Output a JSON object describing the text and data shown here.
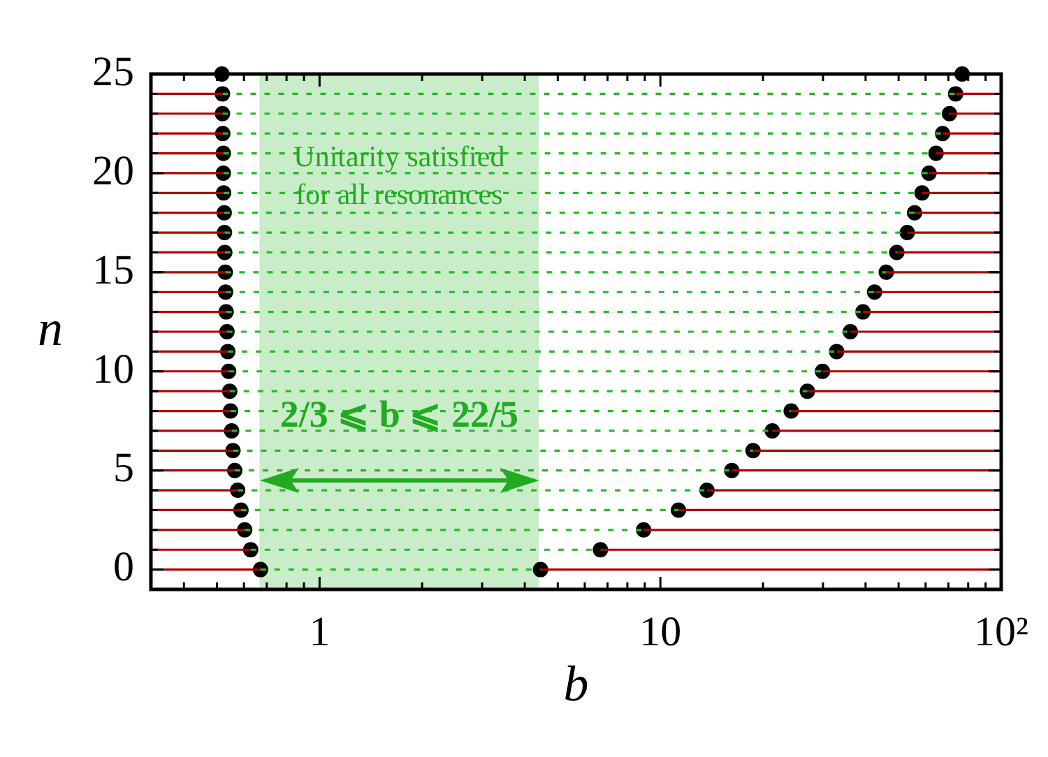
{
  "chart_data": {
    "type": "scatter",
    "xlabel": "b",
    "ylabel": "n",
    "log": "x",
    "grid": false,
    "xlim": [
      0.32,
      100
    ],
    "ylim": [
      -1,
      25
    ],
    "xticks": [
      {
        "value": 0.4,
        "label": null
      },
      {
        "value": 0.5,
        "label": null
      },
      {
        "value": 0.6,
        "label": null
      },
      {
        "value": 0.7,
        "label": null
      },
      {
        "value": 0.8,
        "label": null
      },
      {
        "value": 0.9,
        "label": null
      },
      1,
      {
        "value": 2,
        "label": null
      },
      {
        "value": 3,
        "label": null
      },
      {
        "value": 4,
        "label": null
      },
      {
        "value": 5,
        "label": null
      },
      {
        "value": 6,
        "label": null
      },
      {
        "value": 7,
        "label": null
      },
      {
        "value": 8,
        "label": null
      },
      {
        "value": 9,
        "label": null
      },
      10,
      {
        "value": 20,
        "label": null
      },
      {
        "value": 30,
        "label": null
      },
      {
        "value": 40,
        "label": null
      },
      {
        "value": 50,
        "label": null
      },
      {
        "value": 60,
        "label": null
      },
      {
        "value": 70,
        "label": null
      },
      {
        "value": 80,
        "label": null
      },
      {
        "value": 90,
        "label": null
      },
      {
        "value": 100,
        "label": "10²"
      }
    ],
    "yticks": [
      0,
      {
        "value": 1,
        "label": null
      },
      {
        "value": 2,
        "label": null
      },
      {
        "value": 3,
        "label": null
      },
      {
        "value": 4,
        "label": null
      },
      5,
      {
        "value": 6,
        "label": null
      },
      {
        "value": 7,
        "label": null
      },
      {
        "value": 8,
        "label": null
      },
      {
        "value": 9,
        "label": null
      },
      10,
      {
        "value": 11,
        "label": null
      },
      {
        "value": 12,
        "label": null
      },
      {
        "value": 13,
        "label": null
      },
      {
        "value": 14,
        "label": null
      },
      15,
      {
        "value": 16,
        "label": null
      },
      {
        "value": 17,
        "label": null
      },
      {
        "value": 18,
        "label": null
      },
      {
        "value": 19,
        "label": null
      },
      20,
      {
        "value": 21,
        "label": null
      },
      {
        "value": 22,
        "label": null
      },
      {
        "value": 23,
        "label": null
      },
      {
        "value": 24,
        "label": null
      },
      25
    ],
    "bands": [
      {
        "axis": "x",
        "from": 0.6667,
        "to": 4.4,
        "color": "#c9ecc9"
      }
    ],
    "annotations": [
      "Unitarity satisfied\nfor all resonances",
      "2/3 ⩽ b ⩽ 22/5"
    ],
    "series": [
      {
        "type": "line",
        "color": "#b00000",
        "line_style": "solid",
        "marker": "none",
        "x": [
          0.32,
          0.671
        ],
        "values": [
          0,
          0
        ]
      },
      {
        "type": "line",
        "color": "#b00000",
        "line_style": "solid",
        "marker": "none",
        "x": [
          0.32,
          0.628
        ],
        "values": [
          1,
          1
        ]
      },
      {
        "type": "line",
        "color": "#b00000",
        "line_style": "solid",
        "marker": "none",
        "x": [
          0.32,
          0.603
        ],
        "values": [
          2,
          2
        ]
      },
      {
        "type": "line",
        "color": "#b00000",
        "line_style": "solid",
        "marker": "none",
        "x": [
          0.32,
          0.588
        ],
        "values": [
          3,
          3
        ]
      },
      {
        "type": "line",
        "color": "#b00000",
        "line_style": "solid",
        "marker": "none",
        "x": [
          0.32,
          0.575
        ],
        "values": [
          4,
          4
        ]
      },
      {
        "type": "line",
        "color": "#b00000",
        "line_style": "solid",
        "marker": "none",
        "x": [
          0.32,
          0.564
        ],
        "values": [
          5,
          5
        ]
      },
      {
        "type": "line",
        "color": "#b00000",
        "line_style": "solid",
        "marker": "none",
        "x": [
          0.32,
          0.557
        ],
        "values": [
          6,
          6
        ]
      },
      {
        "type": "line",
        "color": "#b00000",
        "line_style": "solid",
        "marker": "none",
        "x": [
          0.32,
          0.552
        ],
        "values": [
          7,
          7
        ]
      },
      {
        "type": "line",
        "color": "#b00000",
        "line_style": "solid",
        "marker": "none",
        "x": [
          0.32,
          0.548
        ],
        "values": [
          8,
          8
        ]
      },
      {
        "type": "line",
        "color": "#b00000",
        "line_style": "solid",
        "marker": "none",
        "x": [
          0.32,
          0.545
        ],
        "values": [
          9,
          9
        ]
      },
      {
        "type": "line",
        "color": "#b00000",
        "line_style": "solid",
        "marker": "none",
        "x": [
          0.32,
          0.541
        ],
        "values": [
          10,
          10
        ]
      },
      {
        "type": "line",
        "color": "#b00000",
        "line_style": "solid",
        "marker": "none",
        "x": [
          0.32,
          0.538
        ],
        "values": [
          11,
          11
        ]
      },
      {
        "type": "line",
        "color": "#b00000",
        "line_style": "solid",
        "marker": "none",
        "x": [
          0.32,
          0.535
        ],
        "values": [
          12,
          12
        ]
      },
      {
        "type": "line",
        "color": "#b00000",
        "line_style": "solid",
        "marker": "none",
        "x": [
          0.32,
          0.532
        ],
        "values": [
          13,
          13
        ]
      },
      {
        "type": "line",
        "color": "#b00000",
        "line_style": "solid",
        "marker": "none",
        "x": [
          0.32,
          0.53
        ],
        "values": [
          14,
          14
        ]
      },
      {
        "type": "line",
        "color": "#b00000",
        "line_style": "solid",
        "marker": "none",
        "x": [
          0.32,
          0.529
        ],
        "values": [
          15,
          15
        ]
      },
      {
        "type": "line",
        "color": "#b00000",
        "line_style": "solid",
        "marker": "none",
        "x": [
          0.32,
          0.527
        ],
        "values": [
          16,
          16
        ]
      },
      {
        "type": "line",
        "color": "#b00000",
        "line_style": "solid",
        "marker": "none",
        "x": [
          0.32,
          0.526
        ],
        "values": [
          17,
          17
        ]
      },
      {
        "type": "line",
        "color": "#b00000",
        "line_style": "solid",
        "marker": "none",
        "x": [
          0.32,
          0.525
        ],
        "values": [
          18,
          18
        ]
      },
      {
        "type": "line",
        "color": "#b00000",
        "line_style": "solid",
        "marker": "none",
        "x": [
          0.32,
          0.523
        ],
        "values": [
          19,
          19
        ]
      },
      {
        "type": "line",
        "color": "#b00000",
        "line_style": "solid",
        "marker": "none",
        "x": [
          0.32,
          0.522
        ],
        "values": [
          20,
          20
        ]
      },
      {
        "type": "line",
        "color": "#b00000",
        "line_style": "solid",
        "marker": "none",
        "x": [
          0.32,
          0.522
        ],
        "values": [
          21,
          21
        ]
      },
      {
        "type": "line",
        "color": "#b00000",
        "line_style": "solid",
        "marker": "none",
        "x": [
          0.32,
          0.52
        ],
        "values": [
          22,
          22
        ]
      },
      {
        "type": "line",
        "color": "#b00000",
        "line_style": "solid",
        "marker": "none",
        "x": [
          0.32,
          0.519
        ],
        "values": [
          23,
          23
        ]
      },
      {
        "type": "line",
        "color": "#b00000",
        "line_style": "solid",
        "marker": "none",
        "x": [
          0.32,
          0.519
        ],
        "values": [
          24,
          24
        ]
      },
      {
        "type": "line",
        "color": "#b00000",
        "line_style": "solid",
        "marker": "none",
        "x": [
          4.45,
          100
        ],
        "values": [
          0,
          0
        ]
      },
      {
        "type": "line",
        "color": "#b00000",
        "line_style": "solid",
        "marker": "none",
        "x": [
          6.67,
          100
        ],
        "values": [
          1,
          1
        ]
      },
      {
        "type": "line",
        "color": "#b00000",
        "line_style": "solid",
        "marker": "none",
        "x": [
          8.93,
          100
        ],
        "values": [
          2,
          2
        ]
      },
      {
        "type": "line",
        "color": "#b00000",
        "line_style": "solid",
        "marker": "none",
        "x": [
          11.3,
          100
        ],
        "values": [
          3,
          3
        ]
      },
      {
        "type": "line",
        "color": "#b00000",
        "line_style": "solid",
        "marker": "none",
        "x": [
          13.7,
          100
        ],
        "values": [
          4,
          4
        ]
      },
      {
        "type": "line",
        "color": "#b00000",
        "line_style": "solid",
        "marker": "none",
        "x": [
          16.2,
          100
        ],
        "values": [
          5,
          5
        ]
      },
      {
        "type": "line",
        "color": "#b00000",
        "line_style": "solid",
        "marker": "none",
        "x": [
          18.7,
          100
        ],
        "values": [
          6,
          6
        ]
      },
      {
        "type": "line",
        "color": "#b00000",
        "line_style": "solid",
        "marker": "none",
        "x": [
          21.3,
          100
        ],
        "values": [
          7,
          7
        ]
      },
      {
        "type": "line",
        "color": "#b00000",
        "line_style": "solid",
        "marker": "none",
        "x": [
          24.2,
          100
        ],
        "values": [
          8,
          8
        ]
      },
      {
        "type": "line",
        "color": "#b00000",
        "line_style": "solid",
        "marker": "none",
        "x": [
          27.0,
          100
        ],
        "values": [
          9,
          9
        ]
      },
      {
        "type": "line",
        "color": "#b00000",
        "line_style": "solid",
        "marker": "none",
        "x": [
          29.9,
          100
        ],
        "values": [
          10,
          10
        ]
      },
      {
        "type": "line",
        "color": "#b00000",
        "line_style": "solid",
        "marker": "none",
        "x": [
          32.9,
          100
        ],
        "values": [
          11,
          11
        ]
      },
      {
        "type": "line",
        "color": "#b00000",
        "line_style": "solid",
        "marker": "none",
        "x": [
          36.1,
          100
        ],
        "values": [
          12,
          12
        ]
      },
      {
        "type": "line",
        "color": "#b00000",
        "line_style": "solid",
        "marker": "none",
        "x": [
          39.3,
          100
        ],
        "values": [
          13,
          13
        ]
      },
      {
        "type": "line",
        "color": "#b00000",
        "line_style": "solid",
        "marker": "none",
        "x": [
          42.5,
          100
        ],
        "values": [
          14,
          14
        ]
      },
      {
        "type": "line",
        "color": "#b00000",
        "line_style": "solid",
        "marker": "none",
        "x": [
          46.0,
          100
        ],
        "values": [
          15,
          15
        ]
      },
      {
        "type": "line",
        "color": "#b00000",
        "line_style": "solid",
        "marker": "none",
        "x": [
          49.4,
          100
        ],
        "values": [
          16,
          16
        ]
      },
      {
        "type": "line",
        "color": "#b00000",
        "line_style": "solid",
        "marker": "none",
        "x": [
          53.0,
          100
        ],
        "values": [
          17,
          17
        ]
      },
      {
        "type": "line",
        "color": "#b00000",
        "line_style": "solid",
        "marker": "none",
        "x": [
          55.7,
          100
        ],
        "values": [
          18,
          18
        ]
      },
      {
        "type": "line",
        "color": "#b00000",
        "line_style": "solid",
        "marker": "none",
        "x": [
          58.6,
          100
        ],
        "values": [
          19,
          19
        ]
      },
      {
        "type": "line",
        "color": "#b00000",
        "line_style": "solid",
        "marker": "none",
        "x": [
          61.4,
          100
        ],
        "values": [
          20,
          20
        ]
      },
      {
        "type": "line",
        "color": "#b00000",
        "line_style": "solid",
        "marker": "none",
        "x": [
          64.4,
          100
        ],
        "values": [
          21,
          21
        ]
      },
      {
        "type": "line",
        "color": "#b00000",
        "line_style": "solid",
        "marker": "none",
        "x": [
          67.3,
          100
        ],
        "values": [
          22,
          22
        ]
      },
      {
        "type": "line",
        "color": "#b00000",
        "line_style": "solid",
        "marker": "none",
        "x": [
          70.5,
          100
        ],
        "values": [
          23,
          23
        ]
      },
      {
        "type": "line",
        "color": "#b00000",
        "line_style": "solid",
        "marker": "none",
        "x": [
          73.5,
          100
        ],
        "values": [
          24,
          24
        ]
      },
      {
        "type": "line",
        "color": "#22bb22",
        "line_style": "dotted",
        "marker": "none",
        "x": [
          0.671,
          4.45
        ],
        "values": [
          0,
          0
        ]
      },
      {
        "type": "line",
        "color": "#22bb22",
        "line_style": "dotted",
        "marker": "none",
        "x": [
          0.628,
          6.67
        ],
        "values": [
          1,
          1
        ]
      },
      {
        "type": "line",
        "color": "#22bb22",
        "line_style": "dotted",
        "marker": "none",
        "x": [
          0.603,
          8.93
        ],
        "values": [
          2,
          2
        ]
      },
      {
        "type": "line",
        "color": "#22bb22",
        "line_style": "dotted",
        "marker": "none",
        "x": [
          0.588,
          11.3
        ],
        "values": [
          3,
          3
        ]
      },
      {
        "type": "line",
        "color": "#22bb22",
        "line_style": "dotted",
        "marker": "none",
        "x": [
          0.575,
          13.7
        ],
        "values": [
          4,
          4
        ]
      },
      {
        "type": "line",
        "color": "#22bb22",
        "line_style": "dotted",
        "marker": "none",
        "x": [
          0.564,
          16.2
        ],
        "values": [
          5,
          5
        ]
      },
      {
        "type": "line",
        "color": "#22bb22",
        "line_style": "dotted",
        "marker": "none",
        "x": [
          0.557,
          18.7
        ],
        "values": [
          6,
          6
        ]
      },
      {
        "type": "line",
        "color": "#22bb22",
        "line_style": "dotted",
        "marker": "none",
        "x": [
          0.552,
          21.3
        ],
        "values": [
          7,
          7
        ]
      },
      {
        "type": "line",
        "color": "#22bb22",
        "line_style": "dotted",
        "marker": "none",
        "x": [
          0.548,
          24.2
        ],
        "values": [
          8,
          8
        ]
      },
      {
        "type": "line",
        "color": "#22bb22",
        "line_style": "dotted",
        "marker": "none",
        "x": [
          0.545,
          27.0
        ],
        "values": [
          9,
          9
        ]
      },
      {
        "type": "line",
        "color": "#22bb22",
        "line_style": "dotted",
        "marker": "none",
        "x": [
          0.541,
          29.9
        ],
        "values": [
          10,
          10
        ]
      },
      {
        "type": "line",
        "color": "#22bb22",
        "line_style": "dotted",
        "marker": "none",
        "x": [
          0.538,
          32.9
        ],
        "values": [
          11,
          11
        ]
      },
      {
        "type": "line",
        "color": "#22bb22",
        "line_style": "dotted",
        "marker": "none",
        "x": [
          0.535,
          36.1
        ],
        "values": [
          12,
          12
        ]
      },
      {
        "type": "line",
        "color": "#22bb22",
        "line_style": "dotted",
        "marker": "none",
        "x": [
          0.532,
          39.3
        ],
        "values": [
          13,
          13
        ]
      },
      {
        "type": "line",
        "color": "#22bb22",
        "line_style": "dotted",
        "marker": "none",
        "x": [
          0.53,
          42.5
        ],
        "values": [
          14,
          14
        ]
      },
      {
        "type": "line",
        "color": "#22bb22",
        "line_style": "dotted",
        "marker": "none",
        "x": [
          0.529,
          46.0
        ],
        "values": [
          15,
          15
        ]
      },
      {
        "type": "line",
        "color": "#22bb22",
        "line_style": "dotted",
        "marker": "none",
        "x": [
          0.527,
          49.4
        ],
        "values": [
          16,
          16
        ]
      },
      {
        "type": "line",
        "color": "#22bb22",
        "line_style": "dotted",
        "marker": "none",
        "x": [
          0.526,
          53.0
        ],
        "values": [
          17,
          17
        ]
      },
      {
        "type": "line",
        "color": "#22bb22",
        "line_style": "dotted",
        "marker": "none",
        "x": [
          0.525,
          55.7
        ],
        "values": [
          18,
          18
        ]
      },
      {
        "type": "line",
        "color": "#22bb22",
        "line_style": "dotted",
        "marker": "none",
        "x": [
          0.523,
          58.6
        ],
        "values": [
          19,
          19
        ]
      },
      {
        "type": "line",
        "color": "#22bb22",
        "line_style": "dotted",
        "marker": "none",
        "x": [
          0.522,
          61.4
        ],
        "values": [
          20,
          20
        ]
      },
      {
        "type": "line",
        "color": "#22bb22",
        "line_style": "dotted",
        "marker": "none",
        "x": [
          0.522,
          64.4
        ],
        "values": [
          21,
          21
        ]
      },
      {
        "type": "line",
        "color": "#22bb22",
        "line_style": "dotted",
        "marker": "none",
        "x": [
          0.52,
          67.3
        ],
        "values": [
          22,
          22
        ]
      },
      {
        "type": "line",
        "color": "#22bb22",
        "line_style": "dotted",
        "marker": "none",
        "x": [
          0.519,
          70.5
        ],
        "values": [
          23,
          23
        ]
      },
      {
        "type": "line",
        "color": "#22bb22",
        "line_style": "dotted",
        "marker": "none",
        "x": [
          0.519,
          73.5
        ],
        "values": [
          24,
          24
        ]
      },
      {
        "type": "scatter",
        "color": "#000000",
        "marker": "circle",
        "x": [
          0.671,
          0.628,
          0.603,
          0.588,
          0.575,
          0.564,
          0.557,
          0.552,
          0.548,
          0.545,
          0.541,
          0.538,
          0.535,
          0.532,
          0.53,
          0.529,
          0.527,
          0.526,
          0.525,
          0.523,
          0.522,
          0.522,
          0.52,
          0.519,
          0.519,
          0.517
        ],
        "values": [
          0,
          1,
          2,
          3,
          4,
          5,
          6,
          7,
          8,
          9,
          10,
          11,
          12,
          13,
          14,
          15,
          16,
          17,
          18,
          19,
          20,
          21,
          22,
          23,
          24,
          25
        ]
      },
      {
        "type": "scatter",
        "color": "#000000",
        "marker": "circle",
        "x": [
          4.45,
          6.67,
          8.93,
          11.3,
          13.7,
          16.2,
          18.7,
          21.3,
          24.2,
          27.0,
          29.9,
          32.9,
          36.1,
          39.3,
          42.5,
          46.0,
          49.4,
          53.0,
          55.7,
          58.6,
          61.4,
          64.4,
          67.3,
          70.5,
          73.5,
          76.8
        ],
        "values": [
          0,
          1,
          2,
          3,
          4,
          5,
          6,
          7,
          8,
          9,
          10,
          11,
          12,
          13,
          14,
          15,
          16,
          17,
          18,
          19,
          20,
          21,
          22,
          23,
          24,
          25
        ]
      }
    ]
  }
}
